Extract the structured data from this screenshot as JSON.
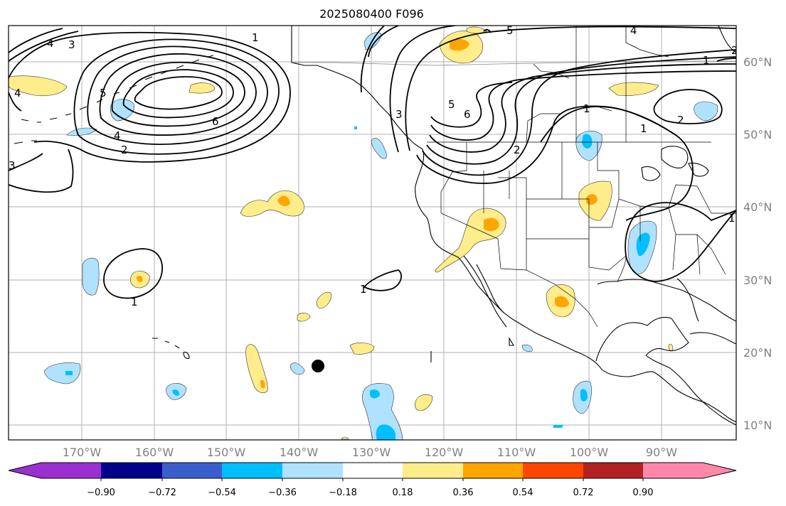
{
  "title": "2025080400 F096",
  "map": {
    "lon_ticks": [
      "170°W",
      "160°W",
      "150°W",
      "140°W",
      "130°W",
      "120°W",
      "110°W",
      "100°W",
      "90°W"
    ],
    "lat_ticks": [
      "60°N",
      "50°N",
      "40°N",
      "30°N",
      "20°N",
      "10°N"
    ],
    "contour_labels": [
      "4",
      "3",
      "5",
      "1",
      "6",
      "4",
      "2",
      "3",
      "1",
      "1",
      "3",
      "5",
      "6",
      "2",
      "5",
      "4",
      "1",
      "2",
      "1",
      "2",
      "4",
      "1",
      "1"
    ],
    "marker": "black-dot"
  },
  "colorbar": {
    "levels": [
      "−0.90",
      "−0.72",
      "−0.54",
      "−0.36",
      "−0.18",
      "0.18",
      "0.36",
      "0.54",
      "0.72",
      "0.90"
    ],
    "colors": [
      "#9b30d0",
      "#00008b",
      "#3a5fcd",
      "#00bfff",
      "#b0e2ff",
      "#ffffff",
      "#ffec8b",
      "#ffa500",
      "#ff4500",
      "#b22222",
      "#ff88aa"
    ]
  }
}
